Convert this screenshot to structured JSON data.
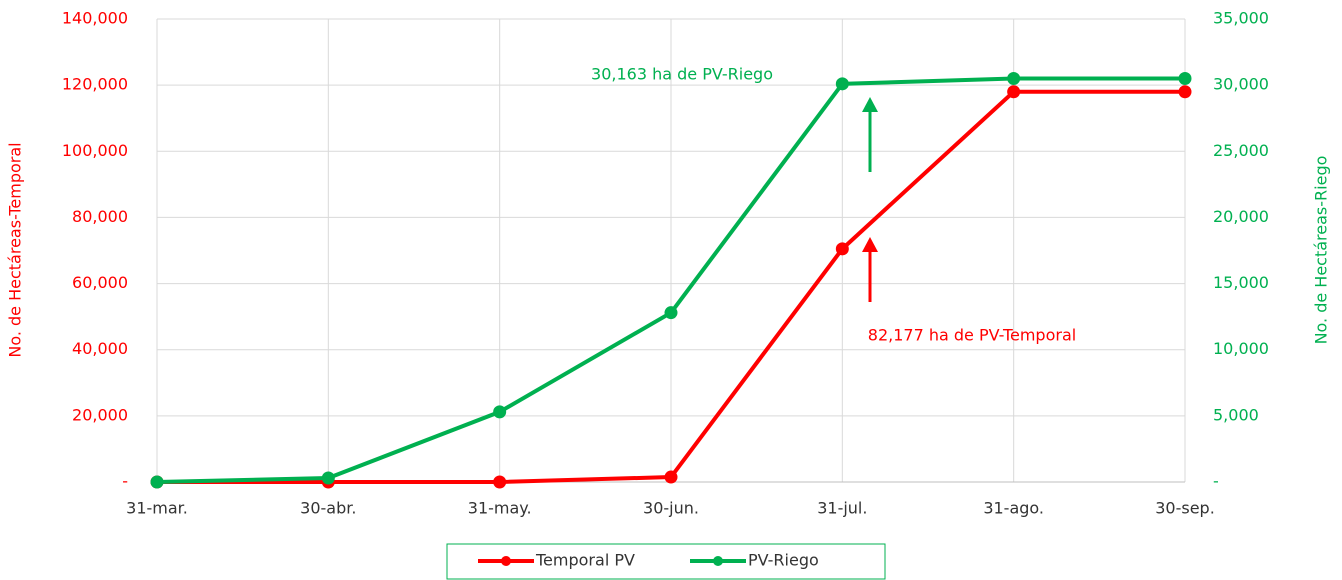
{
  "chart_data": {
    "type": "line",
    "categories": [
      "31-mar.",
      "30-abr.",
      "31-may.",
      "30-jun.",
      "31-jul.",
      "31-ago.",
      "30-sep."
    ],
    "series": [
      {
        "name": "Temporal PV",
        "color": "#ff0000",
        "values": [
          0,
          0,
          0,
          1500,
          70500,
          118000,
          118000
        ]
      },
      {
        "name": "PV-Riego",
        "color": "#00b050",
        "axis": "y2",
        "values": [
          0,
          300,
          5300,
          12800,
          30100,
          30500,
          30500
        ]
      }
    ],
    "ylabel": "No. de Hectáreas-Temporal",
    "y2label": "No. de Hectáreas-Riego",
    "ylim": [
      0,
      140000
    ],
    "yticks": [
      {
        "value": 0,
        "label": "-"
      },
      {
        "value": 20000,
        "label": "20,000"
      },
      {
        "value": 40000,
        "label": "40,000"
      },
      {
        "value": 60000,
        "label": "60,000"
      },
      {
        "value": 80000,
        "label": "80,000"
      },
      {
        "value": 100000,
        "label": "100,000"
      },
      {
        "value": 120000,
        "label": "120,000"
      },
      {
        "value": 140000,
        "label": "140,000"
      }
    ],
    "y2lim": [
      0,
      35000
    ],
    "y2ticks": [
      {
        "value": 0,
        "label": "-"
      },
      {
        "value": 5000,
        "label": "5,000"
      },
      {
        "value": 10000,
        "label": "10,000"
      },
      {
        "value": 15000,
        "label": "15,000"
      },
      {
        "value": 20000,
        "label": "20,000"
      },
      {
        "value": 25000,
        "label": "25,000"
      },
      {
        "value": 30000,
        "label": "30,000"
      },
      {
        "value": 35000,
        "label": "35,000"
      }
    ],
    "annotations": [
      "30,163 ha de PV-Riego",
      "82,177 ha de PV-Temporal"
    ],
    "grid": true,
    "legend": "bottom"
  }
}
